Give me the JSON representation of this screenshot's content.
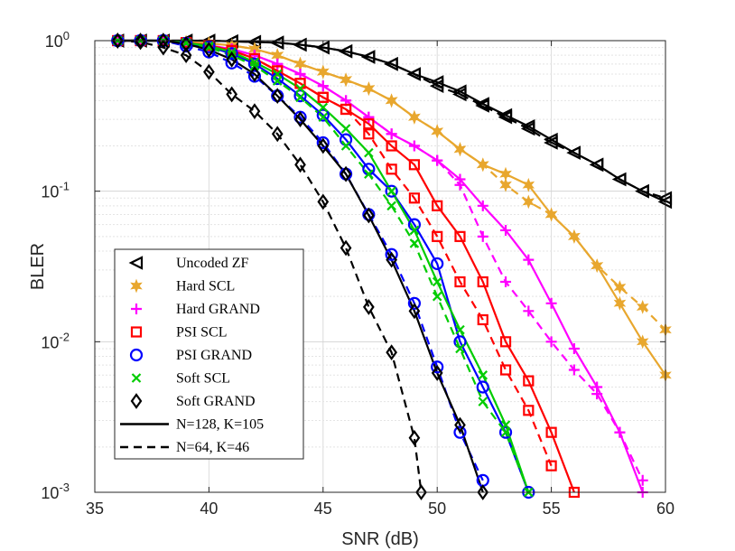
{
  "chart_data": {
    "type": "line",
    "xlabel": "SNR (dB)",
    "ylabel": "BLER",
    "xlim": [
      35,
      60
    ],
    "ylim": [
      0.001,
      1
    ],
    "yscale": "log",
    "x_ticks": [
      "35",
      "40",
      "45",
      "50",
      "55",
      "60"
    ],
    "y_ticks": [
      {
        "mantissa": "10",
        "exp": "0"
      },
      {
        "mantissa": "10",
        "exp": "-1"
      },
      {
        "mantissa": "10",
        "exp": "-2"
      },
      {
        "mantissa": "10",
        "exp": "-3"
      }
    ],
    "grid": true,
    "legend_position": "bottom-left",
    "legend_styles": [
      {
        "name": "N=128, K=105",
        "dash": "solid"
      },
      {
        "name": "N=64, K=46",
        "dash": "dashed"
      }
    ],
    "series": [
      {
        "name": "Uncoded ZF",
        "color": "#000000",
        "marker": "triangle-left",
        "x": [
          36,
          37,
          38,
          39,
          40,
          41,
          42,
          43,
          44,
          45,
          46,
          47,
          48,
          49,
          50,
          51,
          52,
          53,
          54,
          55,
          56,
          57,
          58,
          59,
          60
        ],
        "y_n128": [
          1,
          1,
          1,
          1,
          1,
          0.99,
          0.98,
          0.97,
          0.94,
          0.9,
          0.85,
          0.78,
          0.7,
          0.6,
          0.53,
          0.46,
          0.38,
          0.32,
          0.27,
          0.22,
          0.18,
          0.15,
          0.12,
          0.1,
          0.085
        ],
        "y_n64": [
          1,
          1,
          1,
          1,
          1,
          0.99,
          0.98,
          0.97,
          0.94,
          0.9,
          0.85,
          0.78,
          0.7,
          0.6,
          0.5,
          0.44,
          0.37,
          0.31,
          0.26,
          0.21,
          0.18,
          0.15,
          0.12,
          0.1,
          0.09
        ]
      },
      {
        "name": "Hard SCL",
        "color": "#E8A72E",
        "marker": "star",
        "x": [
          36,
          37,
          38,
          39,
          40,
          41,
          42,
          43,
          44,
          45,
          46,
          47,
          48,
          49,
          50,
          51,
          52,
          53,
          54,
          55,
          56,
          57,
          58,
          59,
          60
        ],
        "y_n128": [
          1,
          1,
          1,
          0.98,
          0.96,
          0.93,
          0.88,
          0.8,
          0.7,
          0.62,
          0.55,
          0.48,
          0.4,
          0.31,
          0.25,
          0.19,
          0.15,
          0.13,
          0.11,
          0.07,
          0.05,
          0.032,
          0.018,
          0.01,
          0.006
        ],
        "y_n64": [
          1,
          1,
          1,
          0.98,
          0.96,
          0.93,
          0.88,
          0.8,
          0.7,
          0.62,
          0.55,
          0.48,
          0.4,
          0.31,
          0.25,
          0.19,
          0.15,
          0.11,
          0.085,
          0.07,
          0.05,
          0.032,
          0.023,
          0.017,
          0.012
        ]
      },
      {
        "name": "Hard GRAND",
        "color": "#FF00FF",
        "marker": "plus",
        "x": [
          36,
          37,
          38,
          39,
          40,
          41,
          42,
          43,
          44,
          45,
          46,
          47,
          48,
          49,
          50,
          51,
          52,
          53,
          54,
          55,
          56,
          57,
          58,
          59
        ],
        "y_n128": [
          1,
          1,
          1,
          0.97,
          0.93,
          0.88,
          0.8,
          0.7,
          0.6,
          0.5,
          0.4,
          0.31,
          0.24,
          0.2,
          0.16,
          0.12,
          0.08,
          0.055,
          0.035,
          0.018,
          0.009,
          0.005,
          0.0025,
          0.001
        ],
        "y_n64": [
          1,
          1,
          1,
          0.97,
          0.93,
          0.88,
          0.8,
          0.7,
          0.6,
          0.5,
          0.4,
          0.31,
          0.24,
          0.2,
          0.16,
          0.11,
          0.05,
          0.025,
          0.016,
          0.01,
          0.0065,
          0.0045,
          0.0025,
          0.0012
        ]
      },
      {
        "name": "PSI SCL",
        "color": "#FF0000",
        "marker": "square",
        "x": [
          36,
          37,
          38,
          39,
          40,
          41,
          42,
          43,
          44,
          45,
          46,
          47,
          48,
          49,
          50,
          51,
          52,
          53,
          54,
          55,
          56
        ],
        "y_n128": [
          1,
          1,
          1,
          0.97,
          0.93,
          0.86,
          0.76,
          0.63,
          0.52,
          0.42,
          0.35,
          0.28,
          0.2,
          0.15,
          0.08,
          0.05,
          0.025,
          0.01,
          0.0055,
          0.0025,
          0.001
        ],
        "y_n64": [
          1,
          1,
          1,
          0.97,
          0.93,
          0.86,
          0.76,
          0.63,
          0.52,
          0.42,
          0.35,
          0.24,
          0.14,
          0.09,
          0.05,
          0.025,
          0.014,
          0.0065,
          0.0035,
          0.0015
        ],
        "x_n64": [
          36,
          37,
          38,
          39,
          40,
          41,
          42,
          43,
          44,
          45,
          46,
          47,
          48,
          49,
          50,
          51,
          52,
          53,
          54,
          55
        ]
      },
      {
        "name": "PSI GRAND",
        "color": "#0000FF",
        "marker": "circle",
        "x": [
          36,
          37,
          38,
          39,
          40,
          41,
          42,
          43,
          44,
          45,
          46,
          47,
          48,
          49,
          50,
          51,
          52,
          53,
          54
        ],
        "y_n128": [
          1,
          1,
          1,
          0.96,
          0.91,
          0.82,
          0.7,
          0.56,
          0.43,
          0.32,
          0.22,
          0.14,
          0.1,
          0.06,
          0.033,
          0.01,
          0.005,
          0.0025,
          0.001
        ],
        "y_n64": [
          1,
          1,
          1,
          0.92,
          0.84,
          0.71,
          0.58,
          0.43,
          0.31,
          0.21,
          0.13,
          0.07,
          0.038,
          0.018,
          0.0068,
          0.0025,
          0.0012
        ],
        "x_n64": [
          36,
          37,
          38,
          39,
          40,
          41,
          42,
          43,
          44,
          45,
          46,
          47,
          48,
          49,
          50,
          51,
          52
        ]
      },
      {
        "name": "Soft SCL",
        "color": "#00CC00",
        "marker": "x",
        "x": [
          36,
          37,
          38,
          39,
          40,
          41,
          42,
          43,
          44,
          45,
          46,
          47,
          48,
          49,
          50,
          51,
          52,
          53,
          54
        ],
        "y_n128": [
          1,
          1,
          1,
          0.97,
          0.92,
          0.84,
          0.72,
          0.6,
          0.48,
          0.36,
          0.26,
          0.18,
          0.1,
          0.055,
          0.025,
          0.012,
          0.006,
          0.0028,
          0.001
        ],
        "y_n64": [
          1,
          1,
          1,
          0.96,
          0.9,
          0.8,
          0.68,
          0.54,
          0.42,
          0.31,
          0.2,
          0.13,
          0.08,
          0.045,
          0.02,
          0.009,
          0.004,
          0.0025,
          0.001
        ],
        "x_n64": [
          36,
          37,
          38,
          39,
          40,
          41,
          42,
          43,
          44,
          45,
          46,
          47,
          48,
          49,
          50,
          51,
          52,
          53,
          54
        ]
      },
      {
        "name": "Soft GRAND",
        "color": "#000000",
        "marker": "diamond",
        "x": [
          36,
          37,
          38,
          39,
          40,
          41,
          42,
          43,
          44,
          45,
          46,
          47,
          48,
          49,
          50,
          51,
          52
        ],
        "y_n128": [
          1,
          1,
          1,
          0.95,
          0.87,
          0.75,
          0.6,
          0.43,
          0.3,
          0.2,
          0.13,
          0.069,
          0.035,
          0.016,
          0.0062,
          0.0028,
          0.001
        ],
        "y_n64": [
          1,
          0.98,
          0.9,
          0.8,
          0.62,
          0.44,
          0.34,
          0.24,
          0.15,
          0.085,
          0.042,
          0.017,
          0.0085,
          0.0023,
          0.001
        ],
        "x_n64": [
          36,
          37,
          38,
          39,
          40,
          41,
          42,
          43,
          44,
          45,
          46,
          47,
          48,
          49,
          49.3
        ]
      }
    ]
  }
}
